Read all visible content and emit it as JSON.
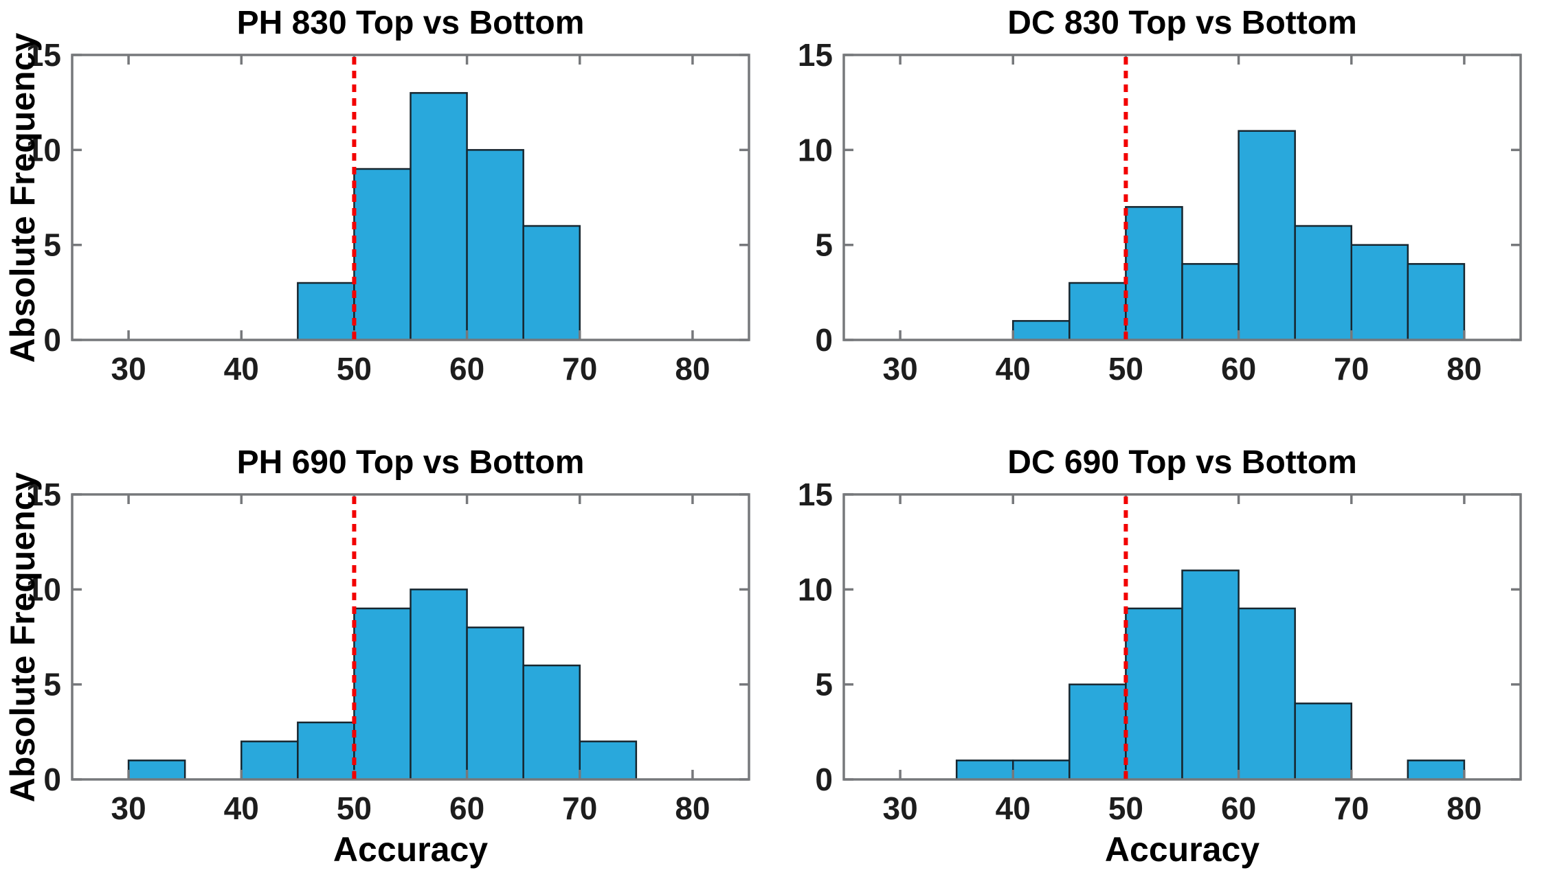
{
  "style": {
    "bar_fill": "#29A8DC",
    "bar_edge": "#17262F",
    "reference_line_color": "#F20000",
    "axis_color": "#76787B",
    "tick_label_color": "#1D1D1D",
    "title_color": "#000000",
    "background": "#FFFFFF"
  },
  "chart_data": [
    {
      "type": "bar",
      "subtype": "histogram",
      "title": "PH 830 Top vs Bottom",
      "xlabel": "",
      "ylabel": "Absolute Frequency",
      "xlim": [
        25,
        85
      ],
      "ylim": [
        0,
        15
      ],
      "xticks": [
        30,
        40,
        50,
        60,
        70,
        80
      ],
      "yticks": [
        0,
        5,
        10,
        15
      ],
      "bin_width": 5,
      "bin_edges": [
        45,
        50,
        55,
        60,
        65,
        70
      ],
      "counts": [
        3,
        9,
        13,
        10,
        6
      ],
      "reference_line_x": 50,
      "grid": false,
      "legend": null
    },
    {
      "type": "bar",
      "subtype": "histogram",
      "title": "DC 830 Top vs Bottom",
      "xlabel": "",
      "ylabel": "",
      "xlim": [
        25,
        85
      ],
      "ylim": [
        0,
        15
      ],
      "xticks": [
        30,
        40,
        50,
        60,
        70,
        80
      ],
      "yticks": [
        0,
        5,
        10,
        15
      ],
      "bin_width": 5,
      "bin_edges": [
        40,
        45,
        50,
        55,
        60,
        65,
        70,
        75,
        80
      ],
      "counts": [
        1,
        3,
        7,
        4,
        11,
        6,
        5,
        4
      ],
      "reference_line_x": 50,
      "grid": false,
      "legend": null
    },
    {
      "type": "bar",
      "subtype": "histogram",
      "title": "PH 690 Top vs Bottom",
      "xlabel": "Accuracy",
      "ylabel": "Absolute Frequency",
      "xlim": [
        25,
        85
      ],
      "ylim": [
        0,
        15
      ],
      "xticks": [
        30,
        40,
        50,
        60,
        70,
        80
      ],
      "yticks": [
        0,
        5,
        10,
        15
      ],
      "bin_width": 5,
      "bin_edges": [
        30,
        35,
        40,
        45,
        50,
        55,
        60,
        65,
        70,
        75
      ],
      "counts": [
        1,
        0,
        2,
        3,
        9,
        10,
        8,
        6,
        2
      ],
      "reference_line_x": 50,
      "grid": false,
      "legend": null
    },
    {
      "type": "bar",
      "subtype": "histogram",
      "title": "DC 690 Top vs Bottom",
      "xlabel": "Accuracy",
      "ylabel": "",
      "xlim": [
        25,
        85
      ],
      "ylim": [
        0,
        15
      ],
      "xticks": [
        30,
        40,
        50,
        60,
        70,
        80
      ],
      "yticks": [
        0,
        5,
        10,
        15
      ],
      "bin_width": 5,
      "bin_edges": [
        35,
        40,
        45,
        50,
        55,
        60,
        65,
        70,
        75,
        80
      ],
      "counts": [
        1,
        1,
        5,
        9,
        11,
        9,
        4,
        0,
        1
      ],
      "reference_line_x": 50,
      "grid": false,
      "legend": null
    }
  ]
}
